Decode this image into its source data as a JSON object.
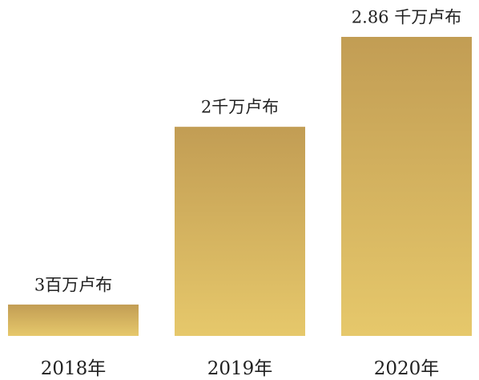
{
  "chart_data": {
    "type": "bar",
    "categories": [
      "2018年",
      "2019年",
      "2020年"
    ],
    "values": [
      3000000,
      20000000,
      28600000
    ],
    "value_labels": [
      "3百万卢布",
      "2千万卢布",
      "2.86 千万卢布"
    ],
    "color": [
      "#c29d54",
      "#e6c86b"
    ]
  }
}
